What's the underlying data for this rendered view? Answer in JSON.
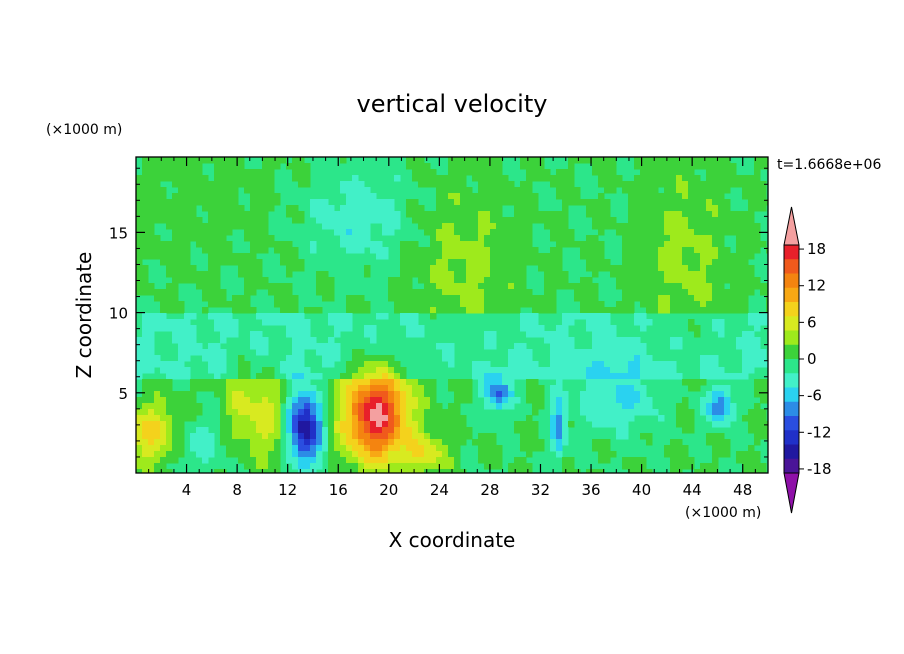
{
  "chart_data": {
    "type": "heatmap",
    "title": "vertical velocity",
    "xlabel": "X coordinate",
    "ylabel": "Z coordinate",
    "x_unit": "(×1000 m)",
    "y_unit": "(×1000 m)",
    "time_label": "t=1.6668e+06",
    "xlim": [
      0,
      50
    ],
    "ylim": [
      0,
      19.7
    ],
    "x_ticks": [
      "4",
      "8",
      "12",
      "16",
      "20",
      "24",
      "28",
      "32",
      "36",
      "40",
      "44",
      "48"
    ],
    "y_ticks": [
      "5",
      "10",
      "15"
    ],
    "colorbar": {
      "range": [
        -21,
        21
      ],
      "labels": [
        "18",
        "12",
        "6",
        "0",
        "-6",
        "-12",
        "-18"
      ],
      "colors": [
        "#f4a0a0",
        "#e8202a",
        "#f05a1c",
        "#f48410",
        "#f8a814",
        "#f4d21c",
        "#d8ea20",
        "#9eea1c",
        "#3cd23a",
        "#2ce68a",
        "#42f0c8",
        "#2ad2f0",
        "#2c8ce6",
        "#2a4ee0",
        "#2030c8",
        "#2018a0",
        "#4a1498",
        "#8e10a8"
      ]
    },
    "features": [
      {
        "x": 19.0,
        "z": 3.6,
        "value": 19,
        "sx": 1.8,
        "sz": 2.0
      },
      {
        "x": 13.4,
        "z": 2.8,
        "value": -16,
        "sx": 0.9,
        "sz": 1.6
      },
      {
        "x": 1.4,
        "z": 2.4,
        "value": 8,
        "sx": 1.6,
        "sz": 1.4
      },
      {
        "x": 8.6,
        "z": 4.0,
        "value": 5,
        "sx": 1.2,
        "sz": 2.0
      },
      {
        "x": 10.6,
        "z": 3.4,
        "value": 4,
        "sx": 0.8,
        "sz": 2.0
      },
      {
        "x": 28.6,
        "z": 5.0,
        "value": -10,
        "sx": 0.8,
        "sz": 0.8
      },
      {
        "x": 46.2,
        "z": 4.2,
        "value": -9,
        "sx": 0.7,
        "sz": 0.9
      },
      {
        "x": 33.4,
        "z": 2.8,
        "value": -8,
        "sx": 0.4,
        "sz": 1.4
      },
      {
        "x": 26.0,
        "z": 13.0,
        "value": 3,
        "sx": 2.8,
        "sz": 3.5
      },
      {
        "x": 43.4,
        "z": 13.4,
        "value": 3,
        "sx": 2.4,
        "sz": 4.0
      },
      {
        "x": 17.4,
        "z": 16.0,
        "value": -4,
        "sx": 3.0,
        "sz": 2.2
      },
      {
        "x": 5.0,
        "z": 16.8,
        "value": 1,
        "sx": 6.0,
        "sz": 2.5
      },
      {
        "x": 23.0,
        "z": 1.2,
        "value": 6,
        "sx": 1.2,
        "sz": 0.9
      },
      {
        "x": 38.2,
        "z": 4.8,
        "value": -5,
        "sx": 2.5,
        "sz": 1.5
      },
      {
        "x": 4.6,
        "z": 1.8,
        "value": -4,
        "sx": 1.8,
        "sz": 1.2
      }
    ]
  }
}
